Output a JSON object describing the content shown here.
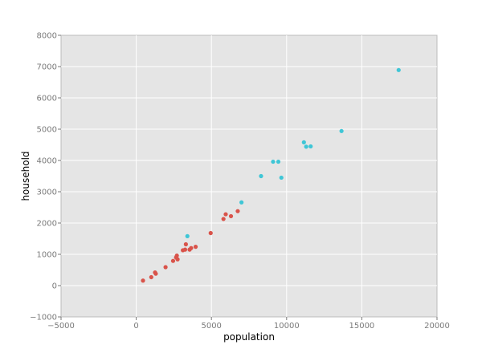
{
  "chart_data": {
    "type": "scatter",
    "title": "",
    "xlabel": "population",
    "ylabel": "household",
    "xlim": [
      -5000,
      20000
    ],
    "ylim": [
      -1000,
      8000
    ],
    "x_ticks": [
      -5000,
      0,
      5000,
      10000,
      15000,
      20000
    ],
    "y_ticks": [
      -1000,
      0,
      1000,
      2000,
      3000,
      4000,
      5000,
      6000,
      7000,
      8000
    ],
    "x_tick_labels": [
      "−5000",
      "0",
      "5000",
      "10000",
      "15000",
      "20000"
    ],
    "y_tick_labels": [
      "−1000",
      "0",
      "1000",
      "2000",
      "3000",
      "4000",
      "5000",
      "6000",
      "7000",
      "8000"
    ],
    "grid": true,
    "legend": "none",
    "colors": {
      "plot_background": "#e5e5e5",
      "grid": "#ffffff",
      "group_a": "#d9534a",
      "group_b": "#3fc6d6"
    },
    "series": [
      {
        "color": "#d9534a",
        "points": [
          [
            450,
            160
          ],
          [
            1000,
            270
          ],
          [
            1250,
            420
          ],
          [
            1300,
            380
          ],
          [
            1950,
            590
          ],
          [
            2450,
            790
          ],
          [
            2650,
            900
          ],
          [
            2700,
            960
          ],
          [
            2750,
            840
          ],
          [
            3100,
            1130
          ],
          [
            3250,
            1150
          ],
          [
            3300,
            1320
          ],
          [
            3550,
            1150
          ],
          [
            3650,
            1200
          ],
          [
            3950,
            1240
          ],
          [
            4950,
            1680
          ],
          [
            5800,
            2130
          ],
          [
            5950,
            2280
          ],
          [
            6300,
            2220
          ],
          [
            6750,
            2380
          ]
        ]
      },
      {
        "color": "#3fc6d6",
        "points": [
          [
            3400,
            1580
          ],
          [
            7000,
            2660
          ],
          [
            8300,
            3500
          ],
          [
            9100,
            3960
          ],
          [
            9450,
            3960
          ],
          [
            9650,
            3450
          ],
          [
            11150,
            4580
          ],
          [
            11300,
            4440
          ],
          [
            11600,
            4450
          ],
          [
            13650,
            4940
          ],
          [
            17450,
            6890
          ]
        ]
      }
    ]
  }
}
